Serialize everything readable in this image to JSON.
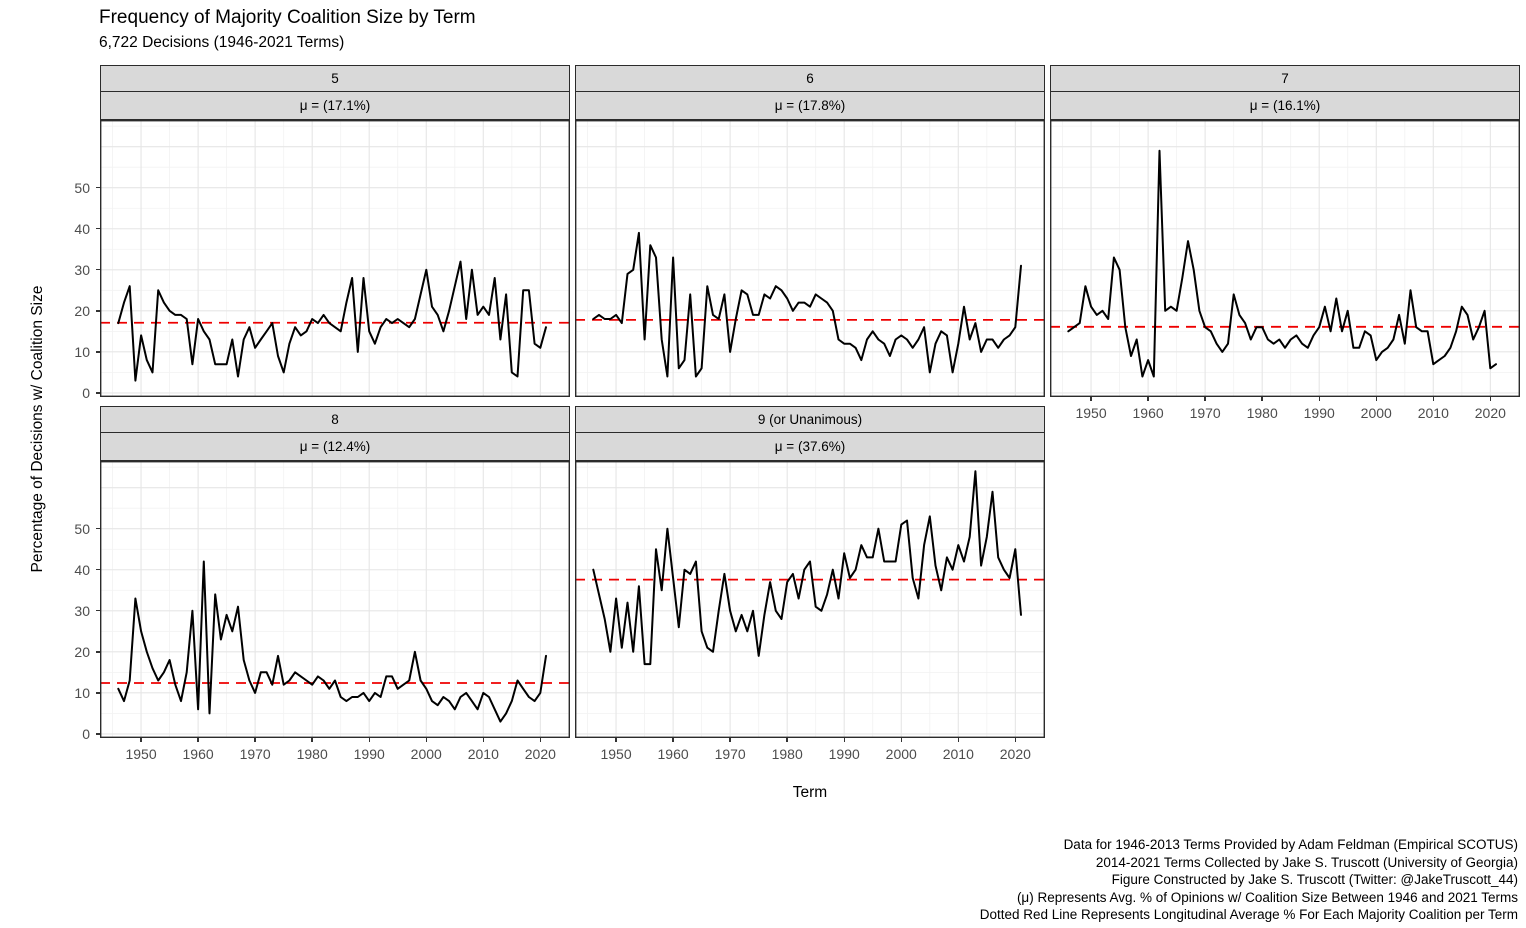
{
  "title": "Frequency of Majority Coalition Size by Term",
  "subtitle": "6,722 Decisions (1946-2021 Terms)",
  "axes": {
    "x_title": "Term",
    "y_title": "Percentage of Decisions w/ Coalition Size",
    "x_ticks": [
      1950,
      1960,
      1970,
      1980,
      1990,
      2000,
      2010,
      2020
    ],
    "y_ticks": [
      0,
      10,
      20,
      30,
      40,
      50
    ]
  },
  "caption": {
    "lines": [
      "Data for 1946-2013 Terms Provided by Adam Feldman (Empirical SCOTUS)",
      "2014-2021 Terms Collected by Jake S. Truscott (University of Georgia)",
      "Figure Constructed by Jake S. Truscott (Twitter: @JakeTruscott_44)",
      "(μ) Represents Avg. % of Opinions w/ Coalition Size Between 1946 and 2021 Terms",
      "Dotted Red Line Represents Longitudinal Average % For Each Majority Coalition per Term"
    ]
  },
  "colors": {
    "line": "#000000",
    "mean_dash": "#EE0000",
    "strip_bg": "#D9D9D9",
    "panel_border": "#2B2B2B",
    "grid_major": "#E6E6E6",
    "grid_minor": "#F2F2F2",
    "tick_text": "#4D4D4D"
  },
  "chart_data": {
    "type": "line",
    "x_start": 1946,
    "x_end": 2021,
    "x_range": [
      1942.8,
      2025.2
    ],
    "y_range": [
      -1,
      66.5
    ],
    "x_major_gridlines": [
      1950,
      1960,
      1970,
      1980,
      1990,
      2000,
      2010,
      2020
    ],
    "x_minor_gridlines": [
      1945,
      1955,
      1965,
      1975,
      1985,
      1995,
      2005,
      2015,
      2025
    ],
    "y_major_gridlines": [
      0,
      10,
      20,
      30,
      40,
      50,
      60
    ],
    "y_minor_gridlines": [
      5,
      15,
      25,
      35,
      45,
      55,
      65
    ],
    "grid": true,
    "legend": "none",
    "facets": [
      {
        "label": "5",
        "mu_label": "μ = (17.1%)",
        "mean": 17.1,
        "values": [
          17,
          22,
          26,
          3,
          14,
          8,
          5,
          25,
          22,
          20,
          19,
          19,
          18,
          7,
          18,
          15,
          13,
          7,
          7,
          7,
          13,
          4,
          13,
          16,
          11,
          13,
          15,
          17,
          9,
          5,
          12,
          16,
          14,
          15,
          18,
          17,
          19,
          17,
          16,
          15,
          22,
          28,
          10,
          28,
          15,
          12,
          16,
          18,
          17,
          18,
          17,
          16,
          18,
          24,
          30,
          21,
          19,
          15,
          20,
          26,
          32,
          18,
          30,
          19,
          21,
          19,
          28,
          13,
          24,
          5,
          4,
          25,
          25,
          12,
          11,
          16
        ]
      },
      {
        "label": "6",
        "mu_label": "μ = (17.8%)",
        "mean": 17.8,
        "values": [
          18,
          19,
          18,
          18,
          19,
          17,
          29,
          30,
          39,
          13,
          36,
          33,
          13,
          4,
          33,
          6,
          8,
          24,
          4,
          6,
          26,
          19,
          18,
          24,
          10,
          18,
          25,
          24,
          19,
          19,
          24,
          23,
          26,
          25,
          23,
          20,
          22,
          22,
          21,
          24,
          23,
          22,
          20,
          13,
          12,
          12,
          11,
          8,
          13,
          15,
          13,
          12,
          9,
          13,
          14,
          13,
          11,
          13,
          16,
          5,
          12,
          15,
          14,
          5,
          12,
          21,
          13,
          17,
          10,
          13,
          13,
          11,
          13,
          14,
          16,
          31
        ]
      },
      {
        "label": "7",
        "mu_label": "μ = (16.1%)",
        "mean": 16.1,
        "values": [
          15,
          16,
          17,
          26,
          21,
          19,
          20,
          18,
          33,
          30,
          16,
          9,
          13,
          4,
          8,
          4,
          59,
          20,
          21,
          20,
          28,
          37,
          30,
          20,
          16,
          15,
          12,
          10,
          12,
          24,
          19,
          17,
          13,
          16,
          16,
          13,
          12,
          13,
          11,
          13,
          14,
          12,
          11,
          14,
          16,
          21,
          15,
          23,
          15,
          20,
          11,
          11,
          15,
          14,
          8,
          10,
          11,
          13,
          19,
          12,
          25,
          16,
          15,
          15,
          7,
          8,
          9,
          11,
          15,
          21,
          19,
          13,
          16,
          20,
          6,
          7
        ]
      },
      {
        "label": "8",
        "mu_label": "μ = (12.4%)",
        "mean": 12.4,
        "values": [
          11,
          8,
          13,
          33,
          25,
          20,
          16,
          13,
          15,
          18,
          12,
          8,
          15,
          30,
          6,
          42,
          5,
          34,
          23,
          29,
          25,
          31,
          18,
          13,
          10,
          15,
          15,
          12,
          19,
          12,
          13,
          15,
          14,
          13,
          12,
          14,
          13,
          11,
          13,
          9,
          8,
          9,
          9,
          10,
          8,
          10,
          9,
          14,
          14,
          11,
          12,
          13,
          20,
          13,
          11,
          8,
          7,
          9,
          8,
          6,
          9,
          10,
          8,
          6,
          10,
          9,
          6,
          3,
          5,
          8,
          13,
          11,
          9,
          8,
          10,
          19
        ]
      },
      {
        "label": "9 (or Unanimous)",
        "mu_label": "μ = (37.6%)",
        "mean": 37.6,
        "values": [
          40,
          34,
          28,
          20,
          33,
          21,
          32,
          20,
          36,
          17,
          17,
          45,
          35,
          50,
          38,
          26,
          40,
          39,
          42,
          25,
          21,
          20,
          30,
          39,
          30,
          25,
          29,
          25,
          30,
          19,
          29,
          37,
          30,
          28,
          37,
          39,
          33,
          40,
          42,
          31,
          30,
          34,
          40,
          33,
          44,
          38,
          40,
          46,
          43,
          43,
          50,
          42,
          42,
          42,
          51,
          52,
          38,
          33,
          46,
          53,
          41,
          35,
          43,
          40,
          46,
          42,
          48,
          64,
          41,
          48,
          59,
          43,
          40,
          38,
          45,
          29
        ]
      }
    ]
  }
}
